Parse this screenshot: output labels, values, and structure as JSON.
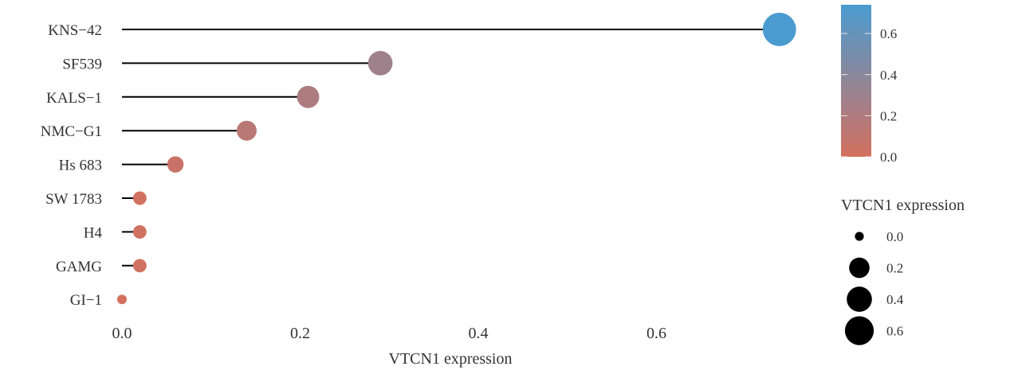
{
  "chart_data": {
    "type": "lollipop",
    "title": "",
    "xlabel": "VTCN1 expression",
    "ylabel": "",
    "xlim": [
      0,
      0.74
    ],
    "x_ticks": [
      0.0,
      0.2,
      0.4,
      0.6
    ],
    "x_tick_labels": [
      "0.0",
      "0.2",
      "0.4",
      "0.6"
    ],
    "grid": false,
    "categories": [
      "KNS−42",
      "SF539",
      "KALS−1",
      "NMC−G1",
      "Hs 683",
      "SW 1783",
      "H4",
      "GAMG",
      "GI−1"
    ],
    "values": [
      0.738,
      0.29,
      0.209,
      0.14,
      0.06,
      0.02,
      0.02,
      0.02,
      0.0
    ],
    "color_legend": {
      "position": "top-right",
      "ticks": [
        0.0,
        0.2,
        0.4,
        0.6
      ],
      "tick_labels": [
        "0.0",
        "0.2",
        "0.4",
        "0.6"
      ],
      "range": [
        0,
        0.74
      ],
      "low_color": "#D4705F",
      "high_color": "#4A9BD0"
    },
    "size_legend": {
      "position": "right",
      "title": "VTCN1 expression",
      "values": [
        0.0,
        0.2,
        0.4,
        0.6
      ],
      "labels": [
        "0.0",
        "0.2",
        "0.4",
        "0.6"
      ]
    }
  }
}
